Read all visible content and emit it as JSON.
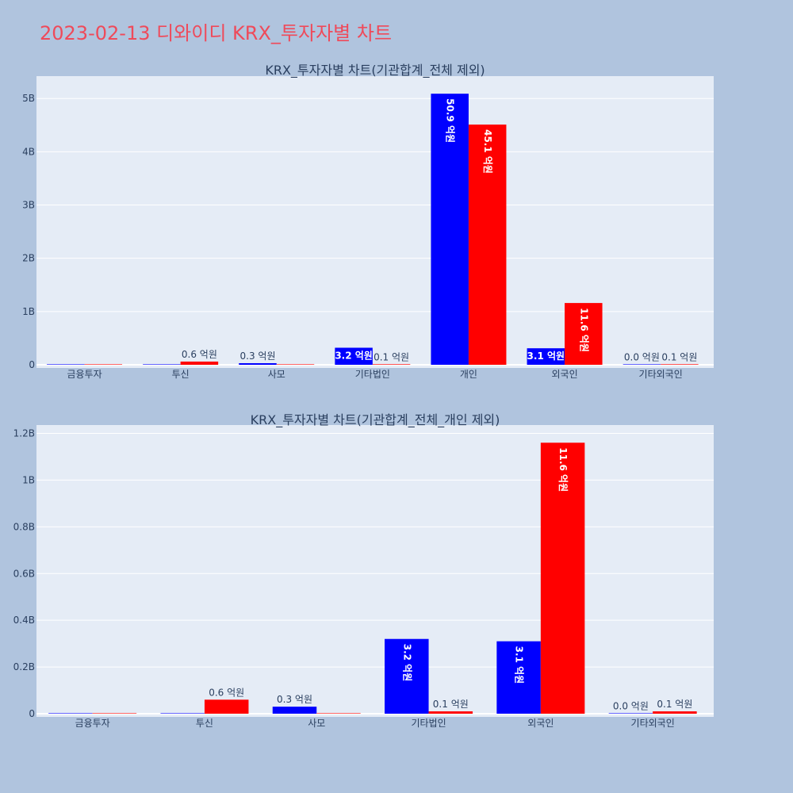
{
  "page": {
    "title": "2023-02-13 디와이디 KRX_투자자별 차트",
    "background": "#b0c4de",
    "plot_background": "#e5ecf6"
  },
  "chart_data": [
    {
      "type": "bar",
      "title": "KRX_투자자별 차트(기관합계_전체 제외)",
      "categories": [
        "금융투자",
        "투신",
        "사모",
        "기타법인",
        "개인",
        "외국인",
        "기타외국인"
      ],
      "ylim": [
        0,
        5100000000
      ],
      "yticks": [
        0,
        1000000000,
        2000000000,
        3000000000,
        4000000000,
        5000000000
      ],
      "ytick_labels": [
        "0",
        "1B",
        "2B",
        "3B",
        "4B",
        "5B"
      ],
      "grid": true,
      "series": [
        {
          "color": "#0000ff",
          "values": [
            0,
            0,
            30000000,
            320000000,
            5090000000,
            310000000,
            0
          ],
          "labels": [
            "",
            "",
            "0.3 억원",
            "3.2 억원",
            "50.9 억원",
            "3.1 억원",
            "0.0 억원"
          ]
        },
        {
          "color": "#ff0000",
          "values": [
            0,
            60000000,
            0,
            10000000,
            4510000000,
            1160000000,
            10000000
          ],
          "labels": [
            "",
            "0.6 억원",
            "",
            "0.1 억원",
            "45.1 억원",
            "11.6 억원",
            "0.1 억원"
          ]
        }
      ]
    },
    {
      "type": "bar",
      "title": "KRX_투자자별 차트(기관합계_전체_개인 제외)",
      "categories": [
        "금융투자",
        "투신",
        "사모",
        "기타법인",
        "외국인",
        "기타외국인"
      ],
      "ylim": [
        0,
        1200000000
      ],
      "yticks": [
        0,
        200000000,
        400000000,
        600000000,
        800000000,
        1000000000,
        1200000000
      ],
      "ytick_labels": [
        "0",
        "0.2B",
        "0.4B",
        "0.6B",
        "0.8B",
        "1B",
        "1.2B"
      ],
      "grid": true,
      "series": [
        {
          "color": "#0000ff",
          "values": [
            0,
            0,
            30000000,
            320000000,
            310000000,
            0
          ],
          "labels": [
            "",
            "",
            "0.3 억원",
            "3.2 억원",
            "3.1 억원",
            "0.0 억원"
          ]
        },
        {
          "color": "#ff0000",
          "values": [
            0,
            60000000,
            0,
            10000000,
            1160000000,
            10000000
          ],
          "labels": [
            "",
            "0.6 억원",
            "",
            "0.1 억원",
            "11.6 억원",
            "0.1 억원"
          ]
        }
      ]
    }
  ]
}
